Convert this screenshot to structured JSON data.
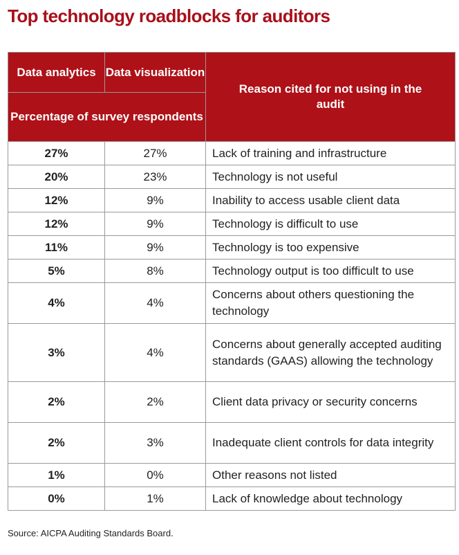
{
  "title": "Top technology roadblocks for auditors",
  "table": {
    "headers": {
      "data_analytics": "Data analytics",
      "data_visualization": "Data visualization",
      "percentage": "Percentage of survey respondents",
      "reason": "Reason cited for not using in the audit"
    },
    "rows": [
      {
        "analytics": "27%",
        "visualization": "27%",
        "reason": "Lack of training and infrastructure"
      },
      {
        "analytics": "20%",
        "visualization": "23%",
        "reason": "Technology is not useful"
      },
      {
        "analytics": "12%",
        "visualization": "9%",
        "reason": "Inability to access usable client data"
      },
      {
        "analytics": "12%",
        "visualization": "9%",
        "reason": "Technology is difficult to use"
      },
      {
        "analytics": "11%",
        "visualization": "9%",
        "reason": "Technology is too expensive"
      },
      {
        "analytics": "5%",
        "visualization": "8%",
        "reason": "Technology output is too difficult to use"
      },
      {
        "analytics": "4%",
        "visualization": "4%",
        "reason": "Concerns about others questioning the technology"
      },
      {
        "analytics": "3%",
        "visualization": "4%",
        "reason": "Concerns about generally accepted auditing standards (GAAS) allowing the technology"
      },
      {
        "analytics": "2%",
        "visualization": "2%",
        "reason": "Client data privacy or security concerns"
      },
      {
        "analytics": "2%",
        "visualization": "3%",
        "reason": "Inadequate client controls for data integrity"
      },
      {
        "analytics": "1%",
        "visualization": "0%",
        "reason": "Other reasons not listed"
      },
      {
        "analytics": "0%",
        "visualization": "1%",
        "reason": "Lack of knowledge about technology"
      }
    ]
  },
  "source": "Source: AICPA Auditing Standards Board.",
  "colors": {
    "title": "#a8101a",
    "header_bg": "#ae1118",
    "border": "#999999"
  }
}
